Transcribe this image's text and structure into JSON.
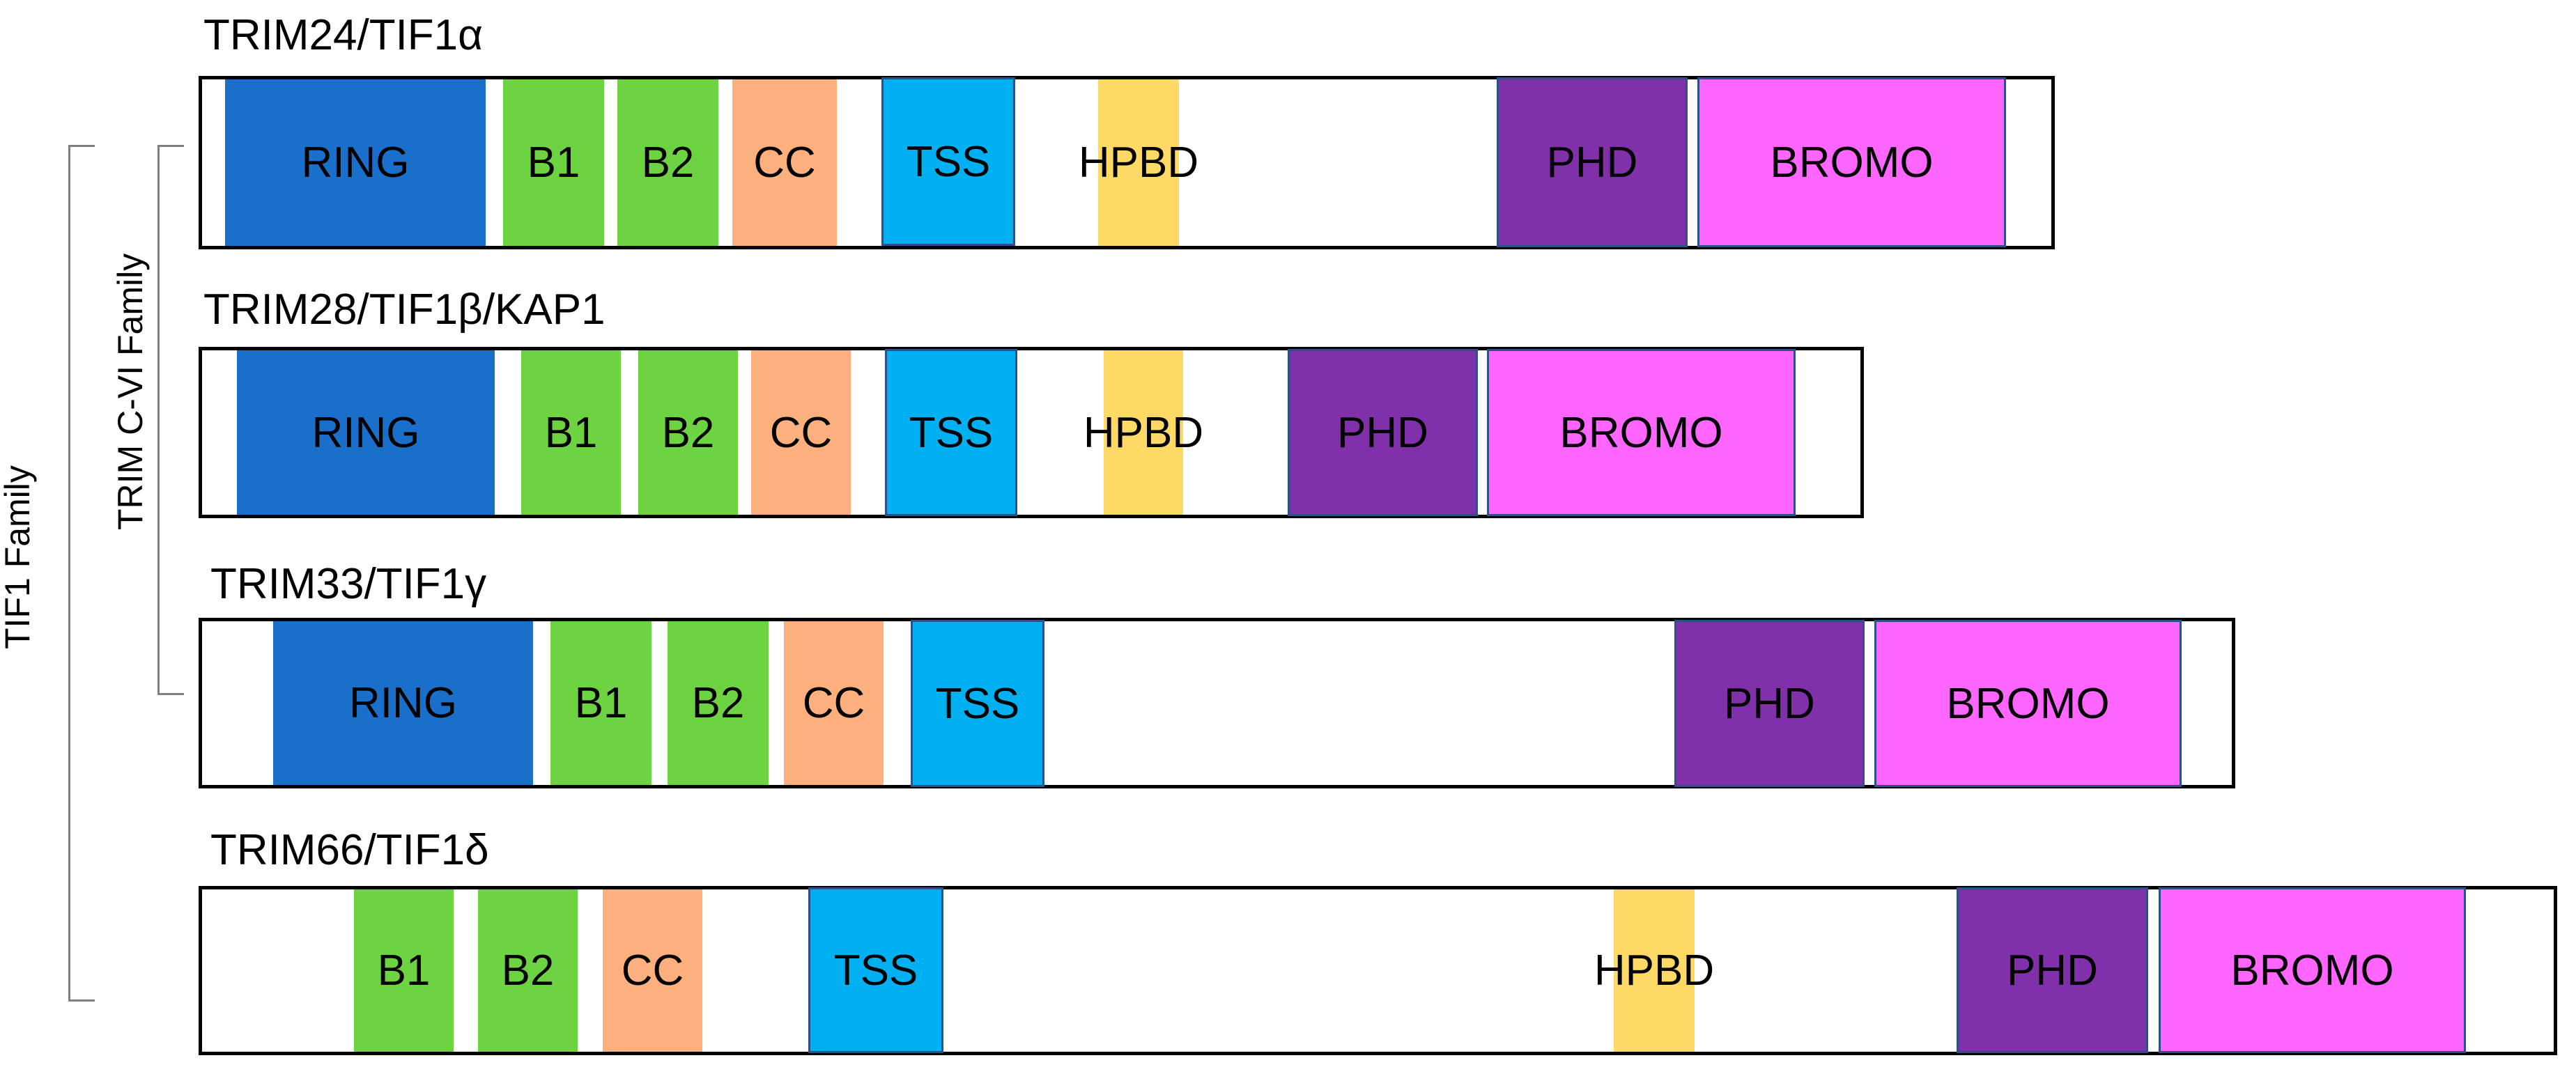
{
  "colors": {
    "RING": "#1A6FCB",
    "B1": "#6ED342",
    "B2": "#6ED342",
    "CC": "#FBB07E",
    "TSS": "#00B0F0",
    "HPBD": "#FFD966",
    "PHD": "#8030A8",
    "BROMO": "#FF66FF"
  },
  "families": {
    "outer_label": "TIF1 Family",
    "inner_label": "TRIM C-VI Family"
  },
  "proteins": [
    {
      "name": "TRIM24/TIF1α",
      "domains": [
        {
          "label": "RING"
        },
        {
          "label": "B1"
        },
        {
          "label": "B2"
        },
        {
          "label": "CC"
        },
        {
          "label": "TSS"
        },
        {
          "label": "HPBD"
        },
        {
          "label": "PHD"
        },
        {
          "label": "BROMO"
        }
      ]
    },
    {
      "name": "TRIM28/TIF1β/KAP1",
      "domains": [
        {
          "label": "RING"
        },
        {
          "label": "B1"
        },
        {
          "label": "B2"
        },
        {
          "label": "CC"
        },
        {
          "label": "TSS"
        },
        {
          "label": "HPBD"
        },
        {
          "label": "PHD"
        },
        {
          "label": "BROMO"
        }
      ]
    },
    {
      "name": "TRIM33/TIF1γ",
      "domains": [
        {
          "label": "RING"
        },
        {
          "label": "B1"
        },
        {
          "label": "B2"
        },
        {
          "label": "CC"
        },
        {
          "label": "TSS"
        },
        {
          "label": "PHD"
        },
        {
          "label": "BROMO"
        }
      ]
    },
    {
      "name": "TRIM66/TIF1δ",
      "domains": [
        {
          "label": "B1"
        },
        {
          "label": "B2"
        },
        {
          "label": "CC"
        },
        {
          "label": "TSS"
        },
        {
          "label": "HPBD"
        },
        {
          "label": "PHD"
        },
        {
          "label": "BROMO"
        }
      ]
    }
  ]
}
